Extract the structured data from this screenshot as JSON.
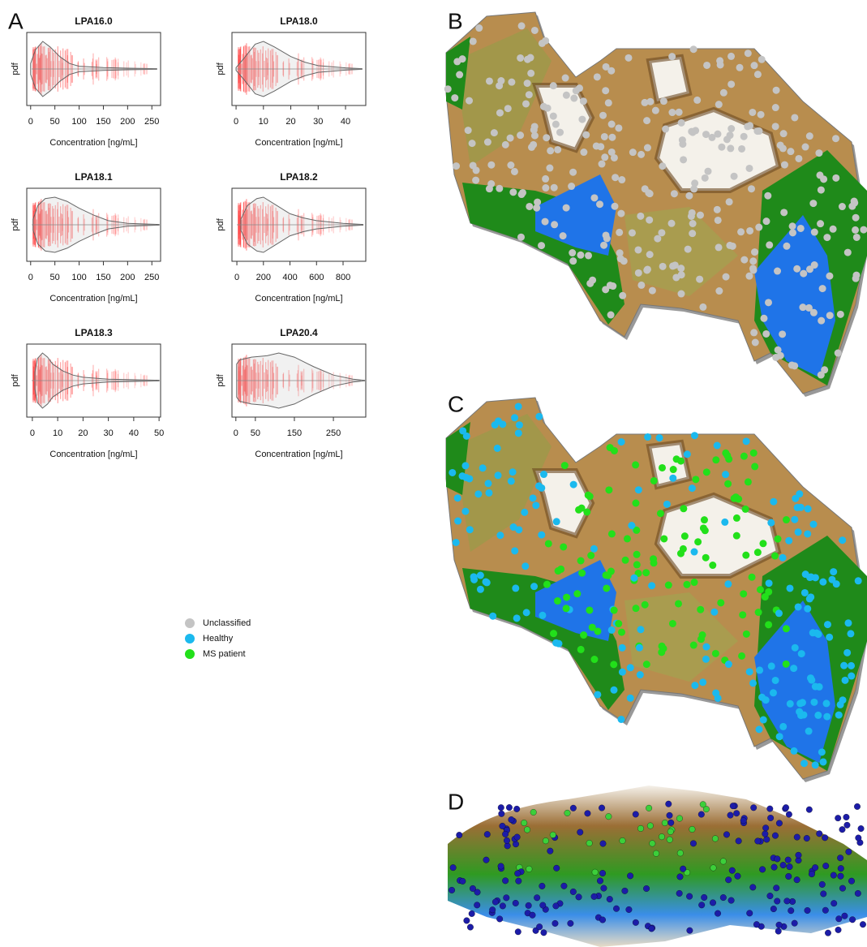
{
  "panel_labels": [
    "A",
    "B",
    "C",
    "D"
  ],
  "chart_data": [
    {
      "type": "violin",
      "title": "LPA16.0",
      "xlabel": "Concentration [ng/mL]",
      "ylabel": "pdf",
      "color": "#ff4040",
      "xlim": [
        -8,
        268
      ],
      "xticks": [
        0,
        50,
        100,
        150,
        200,
        250
      ],
      "x": [
        0,
        10,
        25,
        40,
        60,
        80,
        100,
        150,
        200,
        260
      ],
      "values": [
        0.2,
        0.7,
        1,
        0.8,
        0.45,
        0.2,
        0.1,
        0.05,
        0.03,
        0.01
      ]
    },
    {
      "type": "violin",
      "title": "LPA18.0",
      "xlabel": "Concentration [ng/mL]",
      "ylabel": "pdf",
      "color": "#ff4040",
      "xlim": [
        -1.5,
        47.4
      ],
      "xticks": [
        0,
        10,
        20,
        30,
        40
      ],
      "x": [
        0,
        3,
        7,
        10,
        14,
        20,
        25,
        30,
        40,
        46
      ],
      "values": [
        0.05,
        0.4,
        0.9,
        1,
        0.8,
        0.45,
        0.25,
        0.12,
        0.04,
        0.01
      ]
    },
    {
      "type": "violin",
      "title": "LPA18.1",
      "xlabel": "Concentration [ng/mL]",
      "ylabel": "pdf",
      "color": "#ff4040",
      "xlim": [
        -8,
        268
      ],
      "xticks": [
        0,
        50,
        100,
        150,
        200,
        250
      ],
      "x": [
        5,
        15,
        30,
        50,
        75,
        100,
        130,
        160,
        200,
        265
      ],
      "values": [
        0.2,
        0.7,
        0.95,
        1,
        0.85,
        0.6,
        0.35,
        0.15,
        0.05,
        0.01
      ]
    },
    {
      "type": "violin",
      "title": "LPA18.2",
      "xlabel": "Concentration [ng/mL]",
      "ylabel": "pdf",
      "color": "#ff4040",
      "xlim": [
        -37,
        971
      ],
      "xticks": [
        0,
        200,
        400,
        600,
        800
      ],
      "x": [
        30,
        80,
        150,
        200,
        300,
        400,
        500,
        600,
        800,
        950
      ],
      "values": [
        0.2,
        0.7,
        0.95,
        1,
        0.7,
        0.4,
        0.25,
        0.15,
        0.05,
        0.01
      ]
    },
    {
      "type": "violin",
      "title": "LPA18.3",
      "xlabel": "Concentration [ng/mL]",
      "ylabel": "pdf",
      "color": "#ff4040",
      "xlim": [
        -2.2,
        50.6
      ],
      "xticks": [
        0,
        10,
        20,
        30,
        40,
        50
      ],
      "x": [
        1,
        2,
        4,
        6,
        8,
        12,
        16,
        20,
        30,
        50
      ],
      "values": [
        0.3,
        0.8,
        1,
        0.85,
        0.6,
        0.35,
        0.2,
        0.12,
        0.05,
        0.01
      ]
    },
    {
      "type": "violin",
      "title": "LPA20.4",
      "xlabel": "Concentration [ng/mL]",
      "ylabel": "pdf",
      "color": "#ff4040",
      "xlim": [
        -10,
        333
      ],
      "xticks": [
        0,
        50,
        150,
        250
      ],
      "x": [
        2,
        10,
        40,
        80,
        110,
        150,
        200,
        250,
        300,
        330
      ],
      "values": [
        0.6,
        0.75,
        0.85,
        0.9,
        1,
        0.85,
        0.5,
        0.2,
        0.05,
        0.01
      ]
    }
  ],
  "legend": {
    "items": [
      {
        "name": "Unclassified",
        "color": "#c4c4c4"
      },
      {
        "name": "Healthy",
        "color": "#1bb9ee"
      },
      {
        "name": "MS patient",
        "color": "#22e01a"
      }
    ]
  }
}
